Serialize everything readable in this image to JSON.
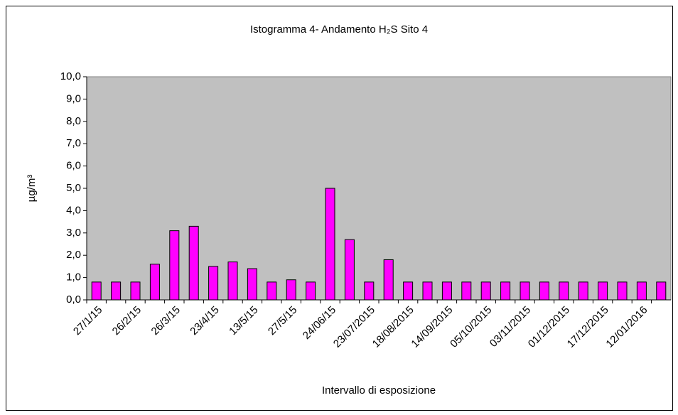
{
  "chart_data": {
    "type": "bar",
    "title": "Istogramma 4- Andamento H₂S Sito 4",
    "x_label": "Intervallo di esposizione",
    "y_label": "µg/m³",
    "categories": [
      "27/1/15",
      null,
      "26/2/15",
      null,
      "26/3/15",
      null,
      "23/4/15",
      null,
      "13/5/15",
      null,
      "27/5/15",
      null,
      "24/06/15",
      null,
      "23/07/2015",
      null,
      "18/08/2015",
      null,
      "14/09/2015",
      null,
      "05/10/2015",
      null,
      "03/11/2015",
      null,
      "01/12/2015",
      null,
      "17/12/2015",
      null,
      "12/01/2016",
      null
    ],
    "values": [
      0.8,
      0.8,
      0.8,
      1.6,
      3.1,
      3.3,
      1.5,
      1.7,
      1.4,
      0.8,
      0.9,
      0.8,
      5.0,
      2.7,
      0.8,
      1.8,
      0.8,
      0.8,
      0.8,
      0.8,
      0.8,
      0.8,
      0.8,
      0.8,
      0.8,
      0.8,
      0.8,
      0.8,
      0.8,
      0.8
    ],
    "color": "#ff00ff",
    "ylim": [
      0,
      10
    ],
    "yticks": [
      {
        "value": 0,
        "label": "0,0"
      },
      {
        "value": 1,
        "label": "1,0"
      },
      {
        "value": 2,
        "label": "2,0"
      },
      {
        "value": 3,
        "label": "3,0"
      },
      {
        "value": 4,
        "label": "4,0"
      },
      {
        "value": 5,
        "label": "5,0"
      },
      {
        "value": 6,
        "label": "6,0"
      },
      {
        "value": 7,
        "label": "7,0"
      },
      {
        "value": 8,
        "label": "8,0"
      },
      {
        "value": 9,
        "label": "9,0"
      },
      {
        "value": 10,
        "label": "10,0"
      }
    ],
    "grid": false
  }
}
